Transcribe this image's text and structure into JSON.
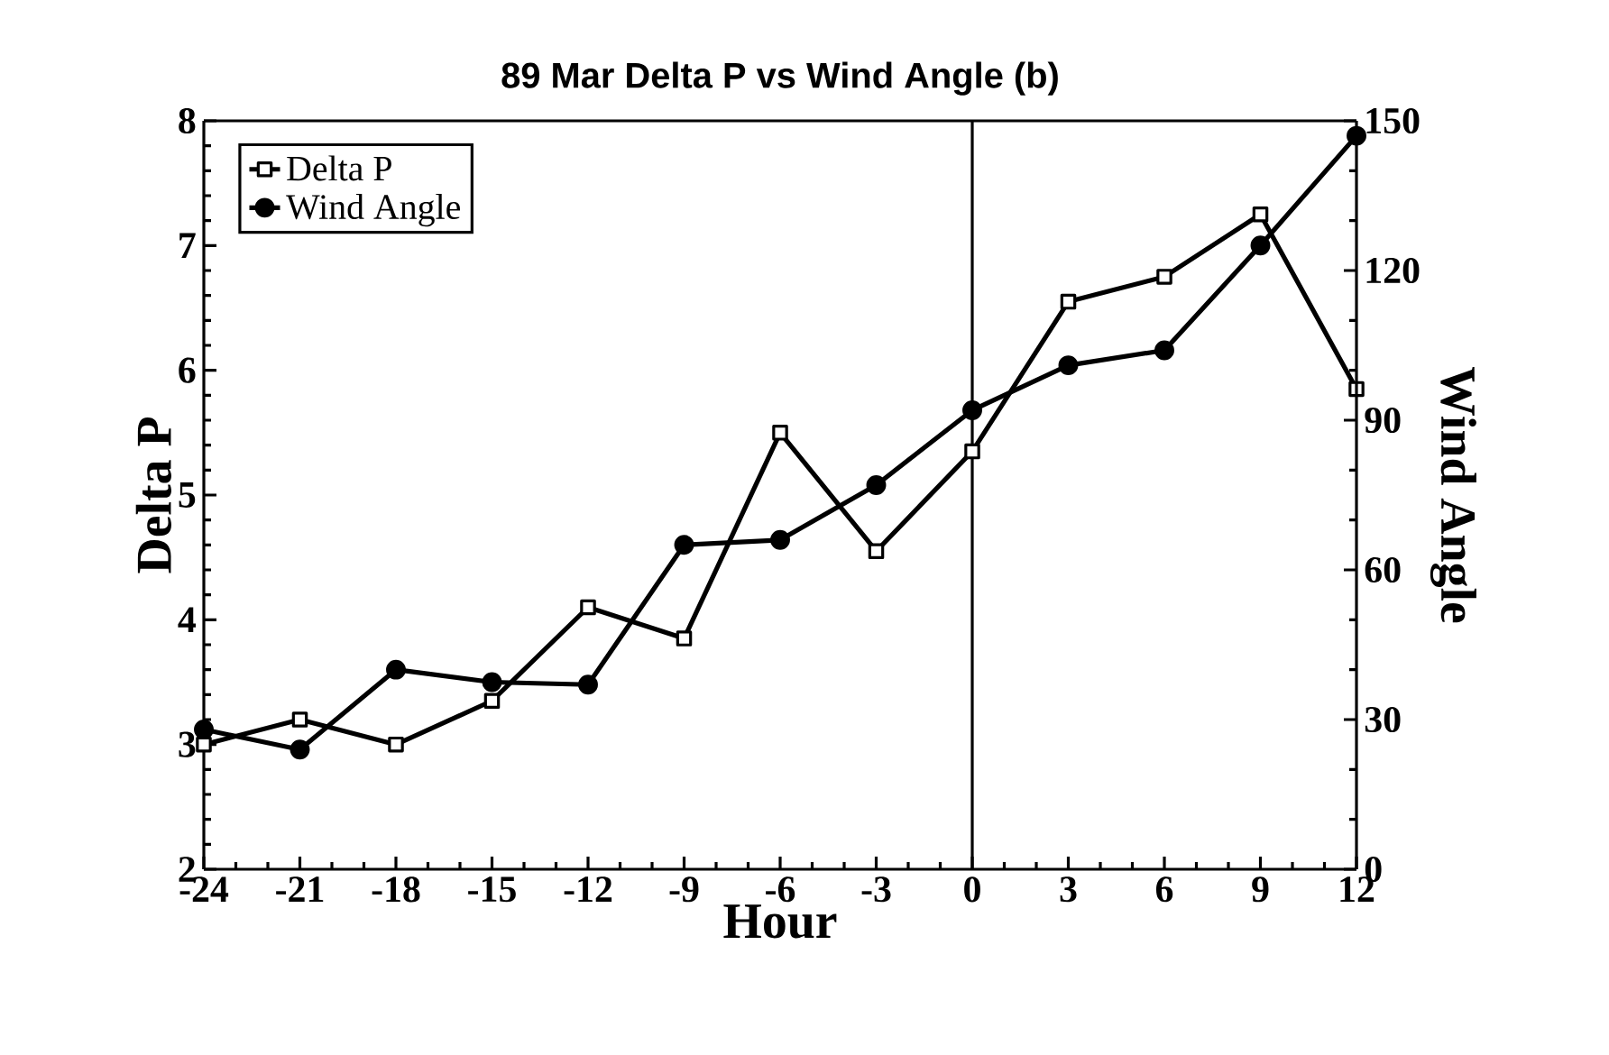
{
  "chart_data": {
    "type": "line",
    "title": "89 Mar Delta P vs Wind Angle (b)",
    "xlabel": "Hour",
    "ylabel": "Delta P",
    "y2label": "Wind Angle",
    "x": [
      -24,
      -21,
      -18,
      -15,
      -12,
      -9,
      -6,
      -3,
      0,
      3,
      6,
      9,
      12
    ],
    "series": [
      {
        "name": "Delta P",
        "color": "#000000",
        "marker": "square",
        "values": [
          3.0,
          3.2,
          3.0,
          3.35,
          4.1,
          3.85,
          5.5,
          4.55,
          5.35,
          6.55,
          6.75,
          7.25,
          5.85
        ]
      },
      {
        "name": "Wind Angle",
        "color": "#000000",
        "marker": "circle",
        "axis": "y2",
        "values": [
          28,
          24,
          40,
          37.5,
          37,
          65,
          66,
          77,
          92,
          101,
          104,
          125,
          147
        ]
      }
    ],
    "xlim": [
      -24,
      12
    ],
    "xticks": [
      -24,
      -21,
      -18,
      -15,
      -12,
      -9,
      -6,
      -3,
      0,
      3,
      6,
      9,
      12
    ],
    "ylim": [
      2,
      8
    ],
    "yticks": [
      2,
      3,
      4,
      5,
      6,
      7,
      8
    ],
    "y2lim": [
      0,
      150
    ],
    "y2ticks": [
      0,
      30,
      60,
      90,
      120,
      150
    ],
    "ref_lines": [
      {
        "axis": "x",
        "value": 0,
        "color": "#000000"
      }
    ],
    "grid": false,
    "legend": "top left",
    "line_style": "solid"
  }
}
